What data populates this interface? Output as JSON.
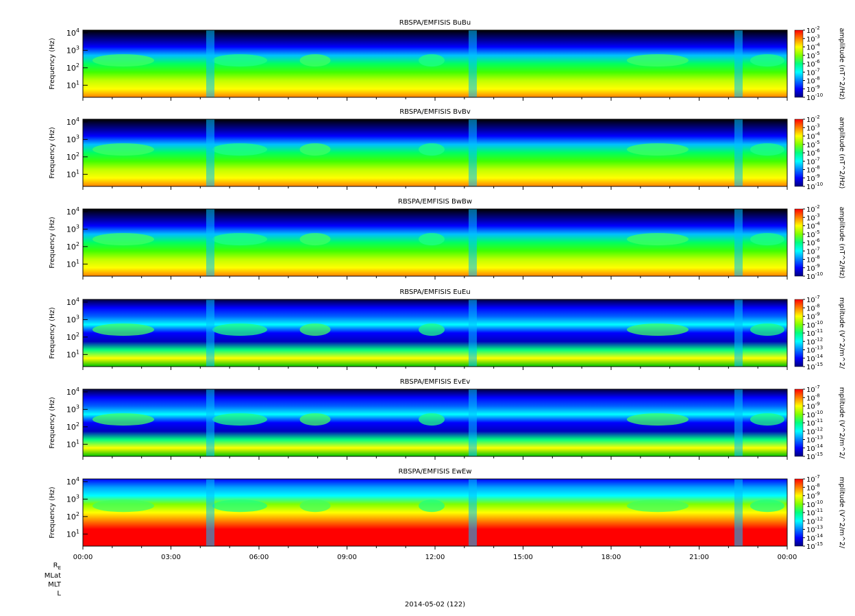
{
  "figure": {
    "date_label": "2014-05-02 (122)",
    "row_labels": [
      "R",
      "MLat",
      "MLT",
      "L"
    ],
    "row_label_subscript": "E"
  },
  "colors": {
    "colormap": [
      "#00007f",
      "#0000ff",
      "#0080ff",
      "#00ffff",
      "#00ff80",
      "#80ff00",
      "#ffff00",
      "#ff8000",
      "#ff0000"
    ],
    "background_low": "#000000"
  },
  "chart_data": [
    {
      "type": "heatmap",
      "title": "RBSPA/EMFISIS  BuBu",
      "ylabel": "Frequency (Hz)",
      "y_scale": "log",
      "y_ticks": [
        {
          "base": "10",
          "exp": "1"
        },
        {
          "base": "10",
          "exp": "2"
        },
        {
          "base": "10",
          "exp": "3"
        },
        {
          "base": "10",
          "exp": "4"
        }
      ],
      "colorbar_label": "amplitude (nT^2/Hz)",
      "colorbar_ticks": [
        "-2",
        "-3",
        "-4",
        "-5",
        "-6",
        "-7",
        "-8",
        "-9",
        "-10"
      ],
      "x_ticks": [
        "00:00",
        "03:00",
        "06:00",
        "09:00",
        "12:00",
        "15:00",
        "18:00",
        "21:00",
        "00:00"
      ]
    },
    {
      "type": "heatmap",
      "title": "RBSPA/EMFISIS  BvBv",
      "ylabel": "Frequency (Hz)",
      "y_scale": "log",
      "y_ticks": [
        {
          "base": "10",
          "exp": "1"
        },
        {
          "base": "10",
          "exp": "2"
        },
        {
          "base": "10",
          "exp": "3"
        },
        {
          "base": "10",
          "exp": "4"
        }
      ],
      "colorbar_label": "amplitude (nT^2/Hz)",
      "colorbar_ticks": [
        "-2",
        "-3",
        "-4",
        "-5",
        "-6",
        "-7",
        "-8",
        "-9",
        "-10"
      ],
      "x_ticks": [
        "00:00",
        "03:00",
        "06:00",
        "09:00",
        "12:00",
        "15:00",
        "18:00",
        "21:00",
        "00:00"
      ]
    },
    {
      "type": "heatmap",
      "title": "RBSPA/EMFISIS  BwBw",
      "ylabel": "Frequency (Hz)",
      "y_scale": "log",
      "y_ticks": [
        {
          "base": "10",
          "exp": "1"
        },
        {
          "base": "10",
          "exp": "2"
        },
        {
          "base": "10",
          "exp": "3"
        },
        {
          "base": "10",
          "exp": "4"
        }
      ],
      "colorbar_label": "amplitude (nT^2/Hz)",
      "colorbar_ticks": [
        "-2",
        "-3",
        "-4",
        "-5",
        "-6",
        "-7",
        "-8",
        "-9",
        "-10"
      ],
      "x_ticks": [
        "00:00",
        "03:00",
        "06:00",
        "09:00",
        "12:00",
        "15:00",
        "18:00",
        "21:00",
        "00:00"
      ]
    },
    {
      "type": "heatmap",
      "title": "RBSPA/EMFISIS  EuEu",
      "ylabel": "Frequency (Hz)",
      "y_scale": "log",
      "y_ticks": [
        {
          "base": "10",
          "exp": "1"
        },
        {
          "base": "10",
          "exp": "2"
        },
        {
          "base": "10",
          "exp": "3"
        },
        {
          "base": "10",
          "exp": "4"
        }
      ],
      "colorbar_label": "mplitude (V^2/m^2/",
      "colorbar_ticks": [
        "-7",
        "-8",
        "-9",
        "-10",
        "-11",
        "-12",
        "-13",
        "-14",
        "-15"
      ],
      "x_ticks": [
        "00:00",
        "03:00",
        "06:00",
        "09:00",
        "12:00",
        "15:00",
        "18:00",
        "21:00",
        "00:00"
      ]
    },
    {
      "type": "heatmap",
      "title": "RBSPA/EMFISIS  EvEv",
      "ylabel": "Frequency (Hz)",
      "y_scale": "log",
      "y_ticks": [
        {
          "base": "10",
          "exp": "1"
        },
        {
          "base": "10",
          "exp": "2"
        },
        {
          "base": "10",
          "exp": "3"
        },
        {
          "base": "10",
          "exp": "4"
        }
      ],
      "colorbar_label": "mplitude (V^2/m^2/",
      "colorbar_ticks": [
        "-7",
        "-8",
        "-9",
        "-10",
        "-11",
        "-12",
        "-13",
        "-14",
        "-15"
      ],
      "x_ticks": [
        "00:00",
        "03:00",
        "06:00",
        "09:00",
        "12:00",
        "15:00",
        "18:00",
        "21:00",
        "00:00"
      ]
    },
    {
      "type": "heatmap",
      "title": "RBSPA/EMFISIS  EwEw",
      "ylabel": "Frequency (Hz)",
      "y_scale": "log",
      "y_ticks": [
        {
          "base": "10",
          "exp": "1"
        },
        {
          "base": "10",
          "exp": "2"
        },
        {
          "base": "10",
          "exp": "3"
        },
        {
          "base": "10",
          "exp": "4"
        }
      ],
      "colorbar_label": "mplitude (V^2/m^2/",
      "colorbar_ticks": [
        "-7",
        "-8",
        "-9",
        "-10",
        "-11",
        "-12",
        "-13",
        "-14",
        "-15"
      ],
      "x_ticks": [
        "00:00",
        "03:00",
        "06:00",
        "09:00",
        "12:00",
        "15:00",
        "18:00",
        "21:00",
        "00:00"
      ]
    }
  ]
}
